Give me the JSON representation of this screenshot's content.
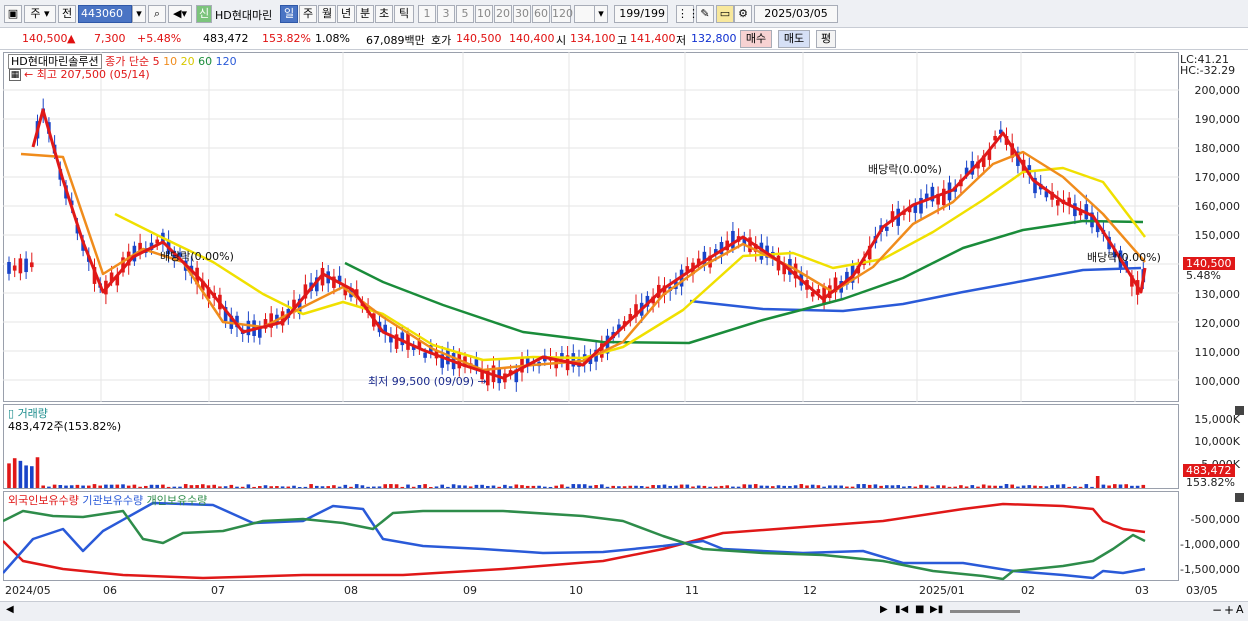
{
  "toolbar": {
    "period_label": "주",
    "prev_label": "전",
    "code": "443060",
    "new_badge": "신",
    "stock_name": "HD현대마린",
    "tabs": [
      "일",
      "주",
      "월",
      "년",
      "분",
      "초",
      "틱"
    ],
    "selected_tab": "일",
    "intervals": [
      "1",
      "3",
      "5",
      "10",
      "20",
      "30",
      "60",
      "120"
    ],
    "count": "199",
    "count_total": "/199",
    "date": "2025/03/05"
  },
  "quote": {
    "price": "140,500",
    "change": "7,300",
    "change_pct": "+5.48%",
    "volume": "483,472",
    "volume_pct": "153.82%",
    "turnover": "1.08%",
    "amount": "67,089백만",
    "bid_label": "호가",
    "bid1": "140,500",
    "bid2": "140,400",
    "open_label": "시",
    "open": "134,100",
    "high_label": "고",
    "high": "141,400",
    "low_label": "저",
    "low": "132,800",
    "buy_label": "매수",
    "sell_label": "매도",
    "eval_label": "평"
  },
  "price_panel": {
    "legend_name": "HD현대마린솔루션",
    "legend_ma": "종가 단순",
    "ma_periods": [
      "5",
      "10",
      "20",
      "60",
      "120"
    ],
    "ma_colors": [
      "#e01818",
      "#f08c1c",
      "#f0e000",
      "#1a8c3a",
      "#2a5ad8"
    ],
    "lc_label": "LC:41.21",
    "hc_label": "HC:-32.29",
    "high_note": "최고 207,500 (05/14)",
    "low_note": "최저 99,500 (09/09)",
    "dividend_note": "배당락(0.00%)",
    "price_tag": "140,500",
    "pct_tag": "5.48%",
    "y_ticks": [
      "200,000",
      "190,000",
      "180,000",
      "170,000",
      "160,000",
      "150,000",
      "140,000",
      "130,000",
      "120,000",
      "110,000",
      "100,000"
    ]
  },
  "volume_panel": {
    "title": "거래량",
    "value_note": "483,472주(153.82%)",
    "y_ticks": [
      "15,000K",
      "10,000K",
      "5,000K"
    ],
    "tag_value": "483,472",
    "tag_pct": "153.82%"
  },
  "holdings_panel": {
    "legend": [
      "외국인보유수량",
      "기관보유수량",
      "개인보유수량"
    ],
    "legend_colors": [
      "#e01818",
      "#2a5ad8",
      "#2e8c4a"
    ],
    "y_ticks": [
      "-500,000",
      "-1,000,000",
      "-1,500,000"
    ]
  },
  "x_axis": [
    "2024/05",
    "06",
    "07",
    "08",
    "09",
    "10",
    "11",
    "12",
    "2025/01",
    "02",
    "03",
    "03/05"
  ]
}
